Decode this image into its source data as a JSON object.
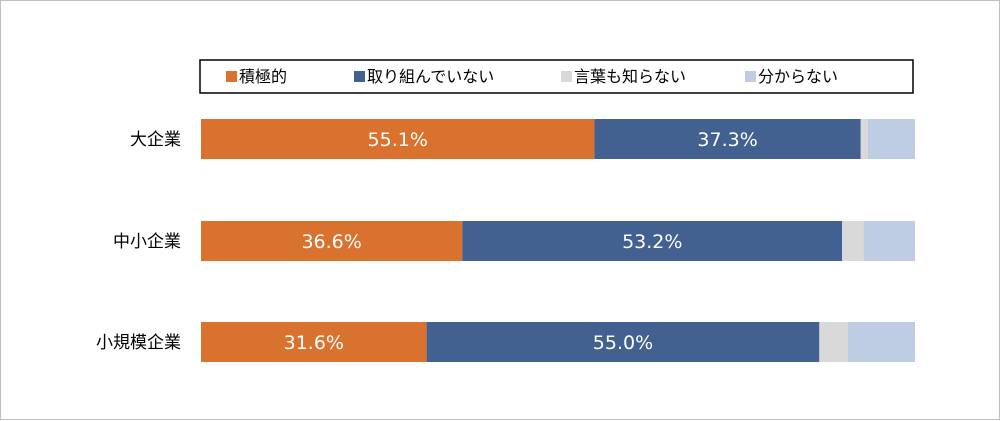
{
  "chart_data": {
    "type": "bar",
    "orientation": "horizontal",
    "stacked": true,
    "normalized": true,
    "categories": [
      "大企業",
      "中小企業",
      "小規模企業"
    ],
    "series": [
      {
        "name": "積極的",
        "color": "#d9722e",
        "values": [
          55.1,
          36.6,
          31.6
        ],
        "labels": [
          "55.1%",
          "36.6%",
          "31.6%"
        ]
      },
      {
        "name": "取り組んでいない",
        "color": "#426090",
        "values": [
          37.3,
          53.2,
          55.0
        ],
        "labels": [
          "37.3%",
          "53.2%",
          "55.0%"
        ]
      },
      {
        "name": "言葉も知らない",
        "color": "#d9d9d9",
        "values": [
          1.0,
          3.0,
          4.0
        ]
      },
      {
        "name": "分からない",
        "color": "#bfcde4",
        "values": [
          6.6,
          7.2,
          9.4
        ]
      }
    ],
    "xlim": [
      0,
      100
    ],
    "grid": false,
    "legend_position": "top",
    "title": "",
    "xlabel": "",
    "ylabel": ""
  }
}
